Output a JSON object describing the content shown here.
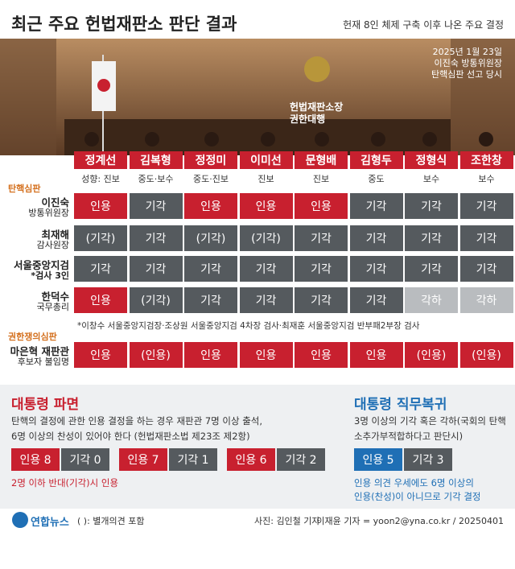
{
  "header": {
    "title": "최근 주요 헌법재판소 판단 결과",
    "subtitle": "헌재 8인 체제 구축 이후 나온 주요 결정"
  },
  "photo": {
    "caption": [
      "2025년 1월 23일",
      "이진숙 방통위원장",
      "탄핵심판 선고 당시"
    ],
    "acting_chief_label": [
      "헌법재판소장",
      "권한대행"
    ]
  },
  "justices": [
    {
      "name": "정계선",
      "leaning": "성향: 진보"
    },
    {
      "name": "김복형",
      "leaning": "중도·보수"
    },
    {
      "name": "정정미",
      "leaning": "중도·진보"
    },
    {
      "name": "이미선",
      "leaning": "진보"
    },
    {
      "name": "문형배",
      "leaning": "진보"
    },
    {
      "name": "김형두",
      "leaning": "중도"
    },
    {
      "name": "정형식",
      "leaning": "보수"
    },
    {
      "name": "조한창",
      "leaning": "보수"
    }
  ],
  "sections": [
    {
      "title": "탄핵심판",
      "rows": [
        {
          "label": [
            "이진숙",
            "방통위원장"
          ],
          "cells": [
            {
              "text": "인용",
              "color": "#c8202f"
            },
            {
              "text": "기각",
              "color": "#555a5e"
            },
            {
              "text": "인용",
              "color": "#c8202f"
            },
            {
              "text": "인용",
              "color": "#c8202f"
            },
            {
              "text": "인용",
              "color": "#c8202f"
            },
            {
              "text": "기각",
              "color": "#555a5e"
            },
            {
              "text": "기각",
              "color": "#555a5e"
            },
            {
              "text": "기각",
              "color": "#555a5e"
            }
          ]
        },
        {
          "label": [
            "최재해",
            "감사원장"
          ],
          "cells": [
            {
              "text": "(기각)",
              "color": "#555a5e"
            },
            {
              "text": "기각",
              "color": "#555a5e"
            },
            {
              "text": "(기각)",
              "color": "#555a5e"
            },
            {
              "text": "(기각)",
              "color": "#555a5e"
            },
            {
              "text": "기각",
              "color": "#555a5e"
            },
            {
              "text": "기각",
              "color": "#555a5e"
            },
            {
              "text": "기각",
              "color": "#555a5e"
            },
            {
              "text": "기각",
              "color": "#555a5e"
            }
          ]
        },
        {
          "label": [
            "서울중앙지검",
            "*검사 3인"
          ],
          "cells": [
            {
              "text": "기각",
              "color": "#555a5e"
            },
            {
              "text": "기각",
              "color": "#555a5e"
            },
            {
              "text": "기각",
              "color": "#555a5e"
            },
            {
              "text": "기각",
              "color": "#555a5e"
            },
            {
              "text": "기각",
              "color": "#555a5e"
            },
            {
              "text": "기각",
              "color": "#555a5e"
            },
            {
              "text": "기각",
              "color": "#555a5e"
            },
            {
              "text": "기각",
              "color": "#555a5e"
            }
          ]
        },
        {
          "label": [
            "한덕수",
            "국무총리"
          ],
          "cells": [
            {
              "text": "인용",
              "color": "#c8202f"
            },
            {
              "text": "(기각)",
              "color": "#555a5e"
            },
            {
              "text": "기각",
              "color": "#555a5e"
            },
            {
              "text": "기각",
              "color": "#555a5e"
            },
            {
              "text": "기각",
              "color": "#555a5e"
            },
            {
              "text": "기각",
              "color": "#555a5e"
            },
            {
              "text": "각하",
              "color": "#b9bcbf"
            },
            {
              "text": "각하",
              "color": "#b9bcbf"
            }
          ]
        }
      ],
      "footnote": "*이창수 서울중앙지검장·조상원 서울중앙지검 4차장 검사·최재훈 서울중앙지검 반부패2부장 검사"
    },
    {
      "title": "권한쟁의심판",
      "rows": [
        {
          "label": [
            "마은혁 재판관",
            "후보자 불임명"
          ],
          "cells": [
            {
              "text": "인용",
              "color": "#c8202f"
            },
            {
              "text": "(인용)",
              "color": "#c8202f"
            },
            {
              "text": "인용",
              "color": "#c8202f"
            },
            {
              "text": "인용",
              "color": "#c8202f"
            },
            {
              "text": "인용",
              "color": "#c8202f"
            },
            {
              "text": "인용",
              "color": "#c8202f"
            },
            {
              "text": "(인용)",
              "color": "#c8202f"
            },
            {
              "text": "(인용)",
              "color": "#c8202f"
            }
          ]
        }
      ]
    }
  ],
  "summary": [
    {
      "title": "대통령 파면",
      "color": "#c8202f",
      "text": [
        "탄핵의 결정에 관한 인용 결정을 하는 경우 재판관 7명 이상 출석,",
        "6명 이상의 찬성이 있어야 한다 (헌법재판소법 제23조 제2항)"
      ],
      "groups": [
        [
          {
            "text": "인용 8",
            "color": "#c8202f"
          },
          {
            "text": "기각 0",
            "color": "#555a5e"
          }
        ],
        [
          {
            "text": "인용 7",
            "color": "#c8202f"
          },
          {
            "text": "기각 1",
            "color": "#555a5e"
          }
        ],
        [
          {
            "text": "인용 6",
            "color": "#c8202f"
          },
          {
            "text": "기각 2",
            "color": "#555a5e"
          }
        ]
      ],
      "note": [
        "2명 이하 반대(기각)시 인용"
      ]
    },
    {
      "title": "대통령 직무복귀",
      "color": "#1f6fb5",
      "text": [
        "3명 이상의 기각 혹은 각하(국회의 탄핵",
        "소추가부적합하다고 판단시)"
      ],
      "groups": [
        [
          {
            "text": "인용 5",
            "color": "#1f6fb5"
          },
          {
            "text": "기각 3",
            "color": "#555a5e"
          }
        ]
      ],
      "note": [
        "인용 의견 우세에도 6명 이상의",
        "인용(찬성)이 아니므로 기각 결정"
      ]
    }
  ],
  "footer": {
    "logo": "연합뉴스",
    "legend": "( ): 별개의견 포함",
    "photo_credit": "사진: 김인철 기자",
    "credit": "이재윤 기자 = yoon2@yna.co.kr / 20250401"
  }
}
